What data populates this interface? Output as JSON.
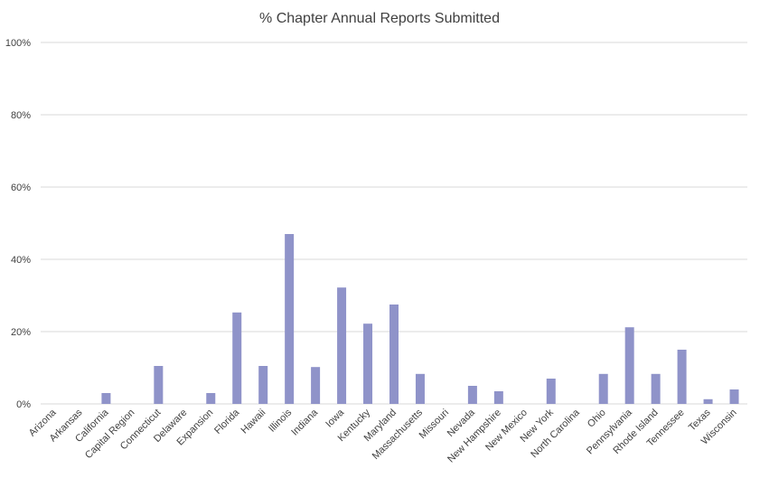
{
  "chart_data": {
    "type": "bar",
    "title": "% Chapter Annual Reports Submitted",
    "xlabel": "",
    "ylabel": "",
    "ylim": [
      0,
      100
    ],
    "yticks": [
      "0%",
      "20%",
      "40%",
      "60%",
      "80%",
      "100%"
    ],
    "ytick_values": [
      0,
      20,
      40,
      60,
      80,
      100
    ],
    "grid": true,
    "legend": "none",
    "bar_color": "#8f93c9",
    "categories": [
      "Arizona",
      "Arkansas",
      "California",
      "Capital Region",
      "Connecticut",
      "Delaware",
      "Expansion",
      "Florida",
      "Hawaii",
      "Illinois",
      "Indiana",
      "Iowa",
      "Kentucky",
      "Maryland",
      "Massachusetts",
      "Missouri",
      "Nevada",
      "New Hampshire",
      "New Mexico",
      "New York",
      "North Carolina",
      "Ohio",
      "Pennsylvania",
      "Rhode Island",
      "Tennessee",
      "Texas",
      "Wisconsin"
    ],
    "values": [
      0,
      0,
      3,
      0,
      10.5,
      0,
      3,
      25.3,
      10.5,
      47,
      10.2,
      32.2,
      22.2,
      27.5,
      8.3,
      0,
      5,
      3.5,
      0,
      7,
      0,
      8.3,
      21.2,
      8.3,
      15,
      1.3,
      4
    ]
  }
}
